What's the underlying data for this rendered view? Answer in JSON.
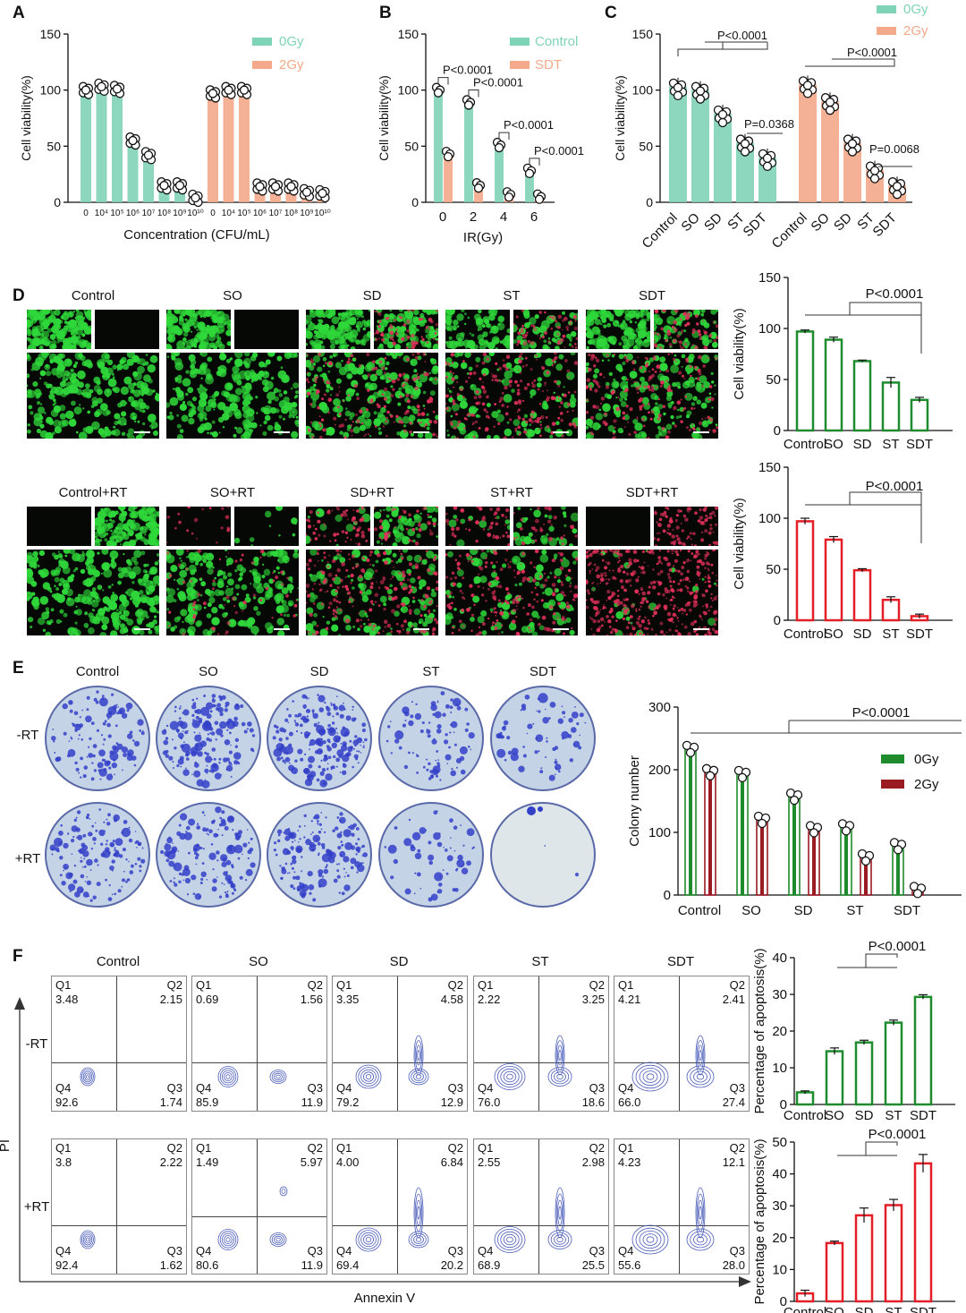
{
  "panel_letters": {
    "A": "A",
    "B": "B",
    "C": "C",
    "D": "D",
    "E": "E",
    "F": "F"
  },
  "colors": {
    "teal": "#7fd3b6",
    "salmon": "#f3a98a",
    "green": "#1e8b2d",
    "red": "#e41e26",
    "darkred": "#9b1b22",
    "blue": "#3340c8"
  },
  "panelD": {
    "top_labels": [
      "Control",
      "SO",
      "SD",
      "ST",
      "SDT"
    ],
    "bottom_labels": [
      "Control+RT",
      "SO+RT",
      "SD+RT",
      "ST+RT",
      "SDT+RT"
    ]
  },
  "panelE": {
    "col_labels": [
      "Control",
      "SO",
      "SD",
      "ST",
      "SDT"
    ],
    "row_labels": [
      "-RT",
      "+RT"
    ]
  },
  "panelF": {
    "col_labels": [
      "Control",
      "SO",
      "SD",
      "ST",
      "SDT"
    ],
    "row_labels": [
      "-RT",
      "+RT"
    ],
    "y_axis": "PI",
    "x_axis": "Annexin V",
    "quadrant_names": [
      "Q1",
      "Q2",
      "Q3",
      "Q4"
    ],
    "plots": [
      [
        {
          "q1": "3.48",
          "q2": "2.15",
          "q3": "1.74",
          "q4": "92.6"
        },
        {
          "q1": "0.69",
          "q2": "1.56",
          "q3": "11.9",
          "q4": "85.9"
        },
        {
          "q1": "3.35",
          "q2": "4.58",
          "q3": "12.9",
          "q4": "79.2"
        },
        {
          "q1": "2.22",
          "q2": "3.25",
          "q3": "18.6",
          "q4": "76.0"
        },
        {
          "q1": "4.21",
          "q2": "2.41",
          "q3": "27.4",
          "q4": "66.0"
        }
      ],
      [
        {
          "q1": "3.8",
          "q2": "2.22",
          "q3": "1.62",
          "q4": "92.4"
        },
        {
          "q1": "1.49",
          "q2": "5.97",
          "q3": "11.9",
          "q4": "80.6"
        },
        {
          "q1": "4.00",
          "q2": "6.84",
          "q3": "20.2",
          "q4": "69.4"
        },
        {
          "q1": "2.55",
          "q2": "2.98",
          "q3": "25.5",
          "q4": "68.9"
        },
        {
          "q1": "4.23",
          "q2": "12.1",
          "q3": "28.0",
          "q4": "55.6"
        }
      ]
    ]
  },
  "chart_data": [
    {
      "id": "A",
      "type": "bar",
      "ylabel": "Cell viability(%)",
      "xlabel": "Concentration (CFU/mL)",
      "ylim": [
        0,
        150
      ],
      "yticks": [
        0,
        50,
        100,
        150
      ],
      "legend": [
        "0Gy",
        "2Gy"
      ],
      "legend_position": "top-right",
      "categories": [
        "0",
        "10⁴",
        "10⁵",
        "10⁶",
        "10⁷",
        "10⁸",
        "10⁹",
        "10¹⁰"
      ],
      "series": [
        {
          "name": "0Gy",
          "values": [
            100,
            103,
            101,
            55,
            42,
            15,
            15,
            4
          ]
        },
        {
          "name": "2Gy",
          "values": [
            97,
            100,
            100,
            14,
            14,
            14,
            9,
            8
          ]
        }
      ]
    },
    {
      "id": "B",
      "type": "bar",
      "ylabel": "Cell viability(%)",
      "xlabel": "IR(Gy)",
      "ylim": [
        0,
        150
      ],
      "yticks": [
        0,
        50,
        100,
        150
      ],
      "legend": [
        "Control",
        "SDT"
      ],
      "legend_position": "top-right",
      "categories": [
        "0",
        "2",
        "4",
        "6"
      ],
      "series": [
        {
          "name": "Control",
          "values": [
            100,
            89,
            51,
            28
          ]
        },
        {
          "name": "SDT",
          "values": [
            43,
            15,
            7,
            5
          ]
        }
      ],
      "annotations": [
        "P<0.0001",
        "P<0.0001",
        "P<0.0001",
        "P<0.0001"
      ]
    },
    {
      "id": "C",
      "type": "bar",
      "ylabel": "Cell viability(%)",
      "ylim": [
        0,
        150
      ],
      "yticks": [
        0,
        50,
        100,
        150
      ],
      "legend": [
        "0Gy",
        "2Gy"
      ],
      "legend_position": "top-right",
      "categories": [
        "Control",
        "SO",
        "SD",
        "ST",
        "SDT"
      ],
      "series": [
        {
          "name": "0Gy",
          "values": [
            103,
            100,
            79,
            53,
            40
          ]
        },
        {
          "name": "2Gy",
          "values": [
            105,
            90,
            53,
            29,
            15
          ]
        }
      ],
      "annotations": [
        "P<0.0001",
        "P=0.0368",
        "P<0.0001",
        "P=0.0068"
      ]
    },
    {
      "id": "D1",
      "type": "bar",
      "ylabel": "Cell viability(%)",
      "ylim": [
        0,
        150
      ],
      "yticks": [
        0,
        50,
        100,
        150
      ],
      "categories": [
        "Control",
        "SO",
        "SD",
        "ST",
        "SDT"
      ],
      "values": [
        97,
        89,
        68,
        47,
        30
      ],
      "errors": [
        1.5,
        2.5,
        1,
        5,
        2.5
      ],
      "annotations": [
        "P<0.0001"
      ]
    },
    {
      "id": "D2",
      "type": "bar",
      "ylabel": "Cell viability(%)",
      "ylim": [
        0,
        150
      ],
      "yticks": [
        0,
        50,
        100,
        150
      ],
      "categories": [
        "Control",
        "SO",
        "SD",
        "ST",
        "SDT"
      ],
      "values": [
        97,
        79,
        49,
        20,
        4
      ],
      "errors": [
        3,
        3,
        1.5,
        3,
        2
      ],
      "annotations": [
        "P<0.0001"
      ]
    },
    {
      "id": "E",
      "type": "bar",
      "ylabel": "Colony number",
      "ylim": [
        0,
        300
      ],
      "yticks": [
        0,
        100,
        200,
        300
      ],
      "legend": [
        "0Gy",
        "2Gy"
      ],
      "legend_position": "top-right",
      "categories": [
        "Control",
        "SO",
        "SD",
        "ST",
        "SDT"
      ],
      "series": [
        {
          "name": "0Gy",
          "values": [
            233,
            193,
            157,
            108,
            78
          ]
        },
        {
          "name": "2Gy",
          "values": [
            196,
            120,
            105,
            60,
            8
          ]
        }
      ],
      "annotations": [
        "P<0.0001"
      ]
    },
    {
      "id": "F1",
      "type": "bar",
      "ylabel": "Percentage of apoptosis(%)",
      "ylim": [
        0,
        40
      ],
      "yticks": [
        0,
        10,
        20,
        30,
        40
      ],
      "categories": [
        "Control",
        "SO",
        "SD",
        "ST",
        "SDT"
      ],
      "values": [
        3.3,
        14.5,
        16.9,
        22.3,
        29.3
      ],
      "errors": [
        0.4,
        0.9,
        0.6,
        0.7,
        0.6
      ],
      "annotations": [
        "P<0.0001"
      ]
    },
    {
      "id": "F2",
      "type": "bar",
      "ylabel": "Percentage of apoptosis(%)",
      "ylim": [
        0,
        50
      ],
      "yticks": [
        0,
        10,
        20,
        30,
        40,
        50
      ],
      "categories": [
        "Control",
        "SO",
        "SD",
        "ST",
        "SDT"
      ],
      "values": [
        2.5,
        18.3,
        27,
        30.2,
        43.3
      ],
      "errors": [
        1,
        0.6,
        2.3,
        1.8,
        2.8
      ],
      "annotations": [
        "P<0.0001"
      ]
    }
  ]
}
